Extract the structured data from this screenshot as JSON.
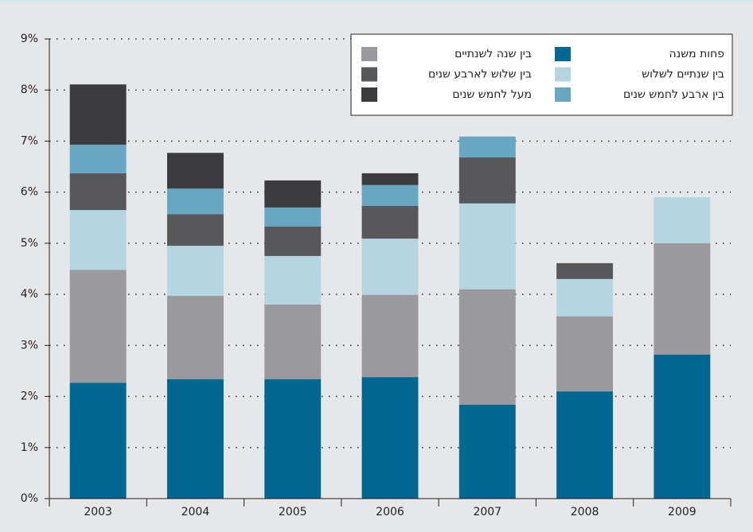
{
  "chart_data": {
    "type": "stacked_bar",
    "categories": [
      "2003",
      "2004",
      "2005",
      "2006",
      "2007",
      "2008",
      "2009"
    ],
    "series": [
      {
        "name": "פחות משנה",
        "color": "#006890",
        "values": [
          2.27,
          2.34,
          2.34,
          2.38,
          1.84,
          2.1,
          2.82
        ]
      },
      {
        "name": "בין שנה לשנתיים",
        "color": "#9a9a9e",
        "values": [
          2.21,
          1.63,
          1.46,
          1.61,
          2.26,
          1.47,
          2.18
        ]
      },
      {
        "name": "בין שנתיים לשלוש",
        "color": "#b5d6e1",
        "values": [
          1.17,
          0.98,
          0.95,
          1.1,
          1.68,
          0.73,
          0.9
        ]
      },
      {
        "name": "בין שלוש לארבע שנים",
        "color": "#58585a",
        "values": [
          0.72,
          0.62,
          0.58,
          0.64,
          0.9,
          0.31,
          null
        ]
      },
      {
        "name": "בין ארבע לחמש שנים",
        "color": "#67a7c4",
        "values": [
          0.56,
          0.5,
          0.37,
          0.41,
          0.41,
          null,
          null
        ]
      },
      {
        "name": "מעל לחמש שנים",
        "color": "#3c3c3e",
        "values": [
          1.18,
          0.7,
          0.53,
          0.23,
          null,
          null,
          null
        ]
      }
    ],
    "ylim": [
      0,
      9
    ],
    "yticks": [
      {
        "value": 0,
        "label": "0%"
      },
      {
        "value": 1,
        "label": "1%"
      },
      {
        "value": 2,
        "label": "2%"
      },
      {
        "value": 3,
        "label": "3%"
      },
      {
        "value": 4,
        "label": "4%"
      },
      {
        "value": 5,
        "label": "5%"
      },
      {
        "value": 6,
        "label": "6%"
      },
      {
        "value": 7,
        "label": "7%"
      },
      {
        "value": 8,
        "label": "8%"
      },
      {
        "value": 9,
        "label": "9%"
      }
    ],
    "grid": true,
    "legend": "top-right"
  }
}
